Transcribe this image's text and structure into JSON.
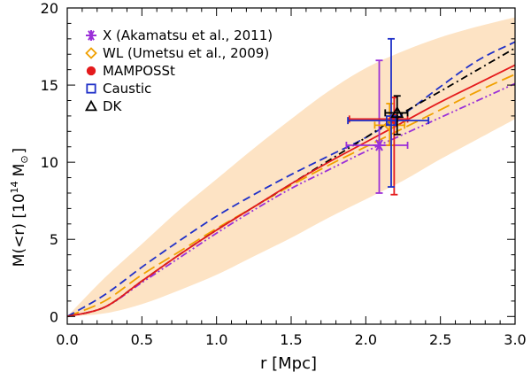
{
  "chart_data": {
    "type": "line",
    "title": "",
    "xlabel": "r [Mpc]",
    "ylabel": "M(<r) [10",
    "ylabel_sup": "14",
    "ylabel_unit": "M",
    "ylabel_unit_sub": "⊙",
    "ylabel_close": "]",
    "xlim": [
      0.0,
      3.0
    ],
    "ylim": [
      -0.5,
      20
    ],
    "xticks": [
      0.0,
      0.5,
      1.0,
      1.5,
      2.0,
      2.5,
      3.0
    ],
    "xtick_labels": [
      "0.0",
      "0.5",
      "1.0",
      "1.5",
      "2.0",
      "2.5",
      "3.0"
    ],
    "yticks": [
      0,
      5,
      10,
      15,
      20
    ],
    "ytick_labels": [
      "0",
      "5",
      "10",
      "15",
      "20"
    ],
    "legend_position": "top-left",
    "band": {
      "color": "#fde3c4",
      "x": [
        0.0,
        0.25,
        0.5,
        0.75,
        1.0,
        1.25,
        1.5,
        1.75,
        2.0,
        2.25,
        2.5,
        2.75,
        3.0
      ],
      "lower": [
        0.0,
        0.2,
        0.8,
        1.7,
        2.7,
        3.9,
        5.1,
        6.4,
        7.6,
        8.8,
        10.2,
        11.5,
        12.8
      ],
      "upper": [
        0.0,
        2.5,
        4.7,
        6.9,
        8.9,
        10.9,
        12.8,
        14.6,
        16.1,
        17.2,
        18.1,
        18.8,
        19.4
      ]
    },
    "series": [
      {
        "name": "MAMPOSSt",
        "color": "#e41a1c",
        "style": "solid",
        "role": "curve",
        "x": [
          0.0,
          0.25,
          0.5,
          0.75,
          1.0,
          1.25,
          1.5,
          1.75,
          2.0,
          2.25,
          2.5,
          2.75,
          3.0
        ],
        "y": [
          0.0,
          0.6,
          2.3,
          4.0,
          5.6,
          7.1,
          8.6,
          10.0,
          11.3,
          12.6,
          13.9,
          15.1,
          16.3
        ]
      },
      {
        "name": "DK",
        "color": "#000000",
        "style": "dashdot",
        "role": "curve",
        "x": [
          0.0,
          0.25,
          0.5,
          0.75,
          1.0,
          1.25,
          1.5,
          1.75,
          2.0,
          2.25,
          2.5,
          2.75,
          3.0
        ],
        "y": [
          0.0,
          0.6,
          2.3,
          4.0,
          5.6,
          7.1,
          8.6,
          10.1,
          11.6,
          13.2,
          14.6,
          16.0,
          17.4
        ]
      },
      {
        "name": "Caustic",
        "color": "#1f30c8",
        "style": "dashed",
        "role": "curve",
        "x": [
          0.0,
          0.25,
          0.5,
          0.75,
          1.0,
          1.25,
          1.5,
          1.75,
          2.0,
          2.25,
          2.5,
          2.75,
          3.0
        ],
        "y": [
          0.0,
          1.4,
          3.2,
          4.9,
          6.5,
          7.9,
          9.2,
          10.4,
          11.6,
          13.1,
          14.9,
          16.6,
          17.8
        ]
      },
      {
        "name": "WL (Umetsu et al., 2009)",
        "color": "#f0a000",
        "style": "longdash",
        "role": "curve",
        "x": [
          0.0,
          0.25,
          0.5,
          0.75,
          1.0,
          1.25,
          1.5,
          1.75,
          2.0,
          2.25,
          2.5,
          2.75,
          3.0
        ],
        "y": [
          0.0,
          1.0,
          2.7,
          4.2,
          5.7,
          7.1,
          8.5,
          9.8,
          11.0,
          12.2,
          13.4,
          14.6,
          15.7
        ]
      },
      {
        "name": "X (Akamatsu et al., 2011)",
        "color": "#9b30d8",
        "style": "dashdotdot",
        "role": "curve",
        "x": [
          0.0,
          0.25,
          0.5,
          0.75,
          1.0,
          1.25,
          1.5,
          1.75,
          2.0,
          2.25,
          2.5,
          2.75,
          3.0
        ],
        "y": [
          0.0,
          0.6,
          2.2,
          3.8,
          5.4,
          6.9,
          8.3,
          9.5,
          10.7,
          11.8,
          12.9,
          14.0,
          15.1
        ]
      }
    ],
    "points": [
      {
        "name": "X (Akamatsu et al., 2011)",
        "marker": "asterisk",
        "color": "#9b30d8",
        "x": 2.09,
        "y": 11.1,
        "xerr": [
          0.22,
          0.19
        ],
        "yerr": [
          3.1,
          5.5
        ]
      },
      {
        "name": "WL (Umetsu et al., 2009)",
        "marker": "diamond",
        "color": "#f0a000",
        "x": 2.16,
        "y": 12.4,
        "xerr": [
          0.1,
          0.1
        ],
        "yerr": [
          1.3,
          1.4
        ]
      },
      {
        "name": "MAMPOSSt",
        "marker": "circle",
        "color": "#e41a1c",
        "x": 2.19,
        "y": 12.8,
        "xerr": [
          0.3,
          0.09
        ],
        "yerr": [
          4.9,
          1.4
        ]
      },
      {
        "name": "Caustic",
        "marker": "square",
        "color": "#1f30c8",
        "x": 2.17,
        "y": 12.7,
        "xerr": [
          0.29,
          0.25
        ],
        "yerr": [
          4.3,
          5.3
        ]
      },
      {
        "name": "DK",
        "marker": "triangle",
        "color": "#000000",
        "x": 2.21,
        "y": 13.2,
        "xerr": [
          0.08,
          0.07
        ],
        "yerr": [
          1.4,
          1.1
        ]
      }
    ],
    "legend": [
      {
        "label": "X (Akamatsu et al., 2011)",
        "marker": "asterisk",
        "color": "#9b30d8"
      },
      {
        "label": "WL (Umetsu et al., 2009)",
        "marker": "diamond",
        "color": "#f0a000"
      },
      {
        "label": "MAMPOSSt",
        "marker": "circle",
        "color": "#e41a1c"
      },
      {
        "label": "Caustic",
        "marker": "square",
        "color": "#1f30c8"
      },
      {
        "label": "DK",
        "marker": "triangle",
        "color": "#000000"
      }
    ]
  }
}
